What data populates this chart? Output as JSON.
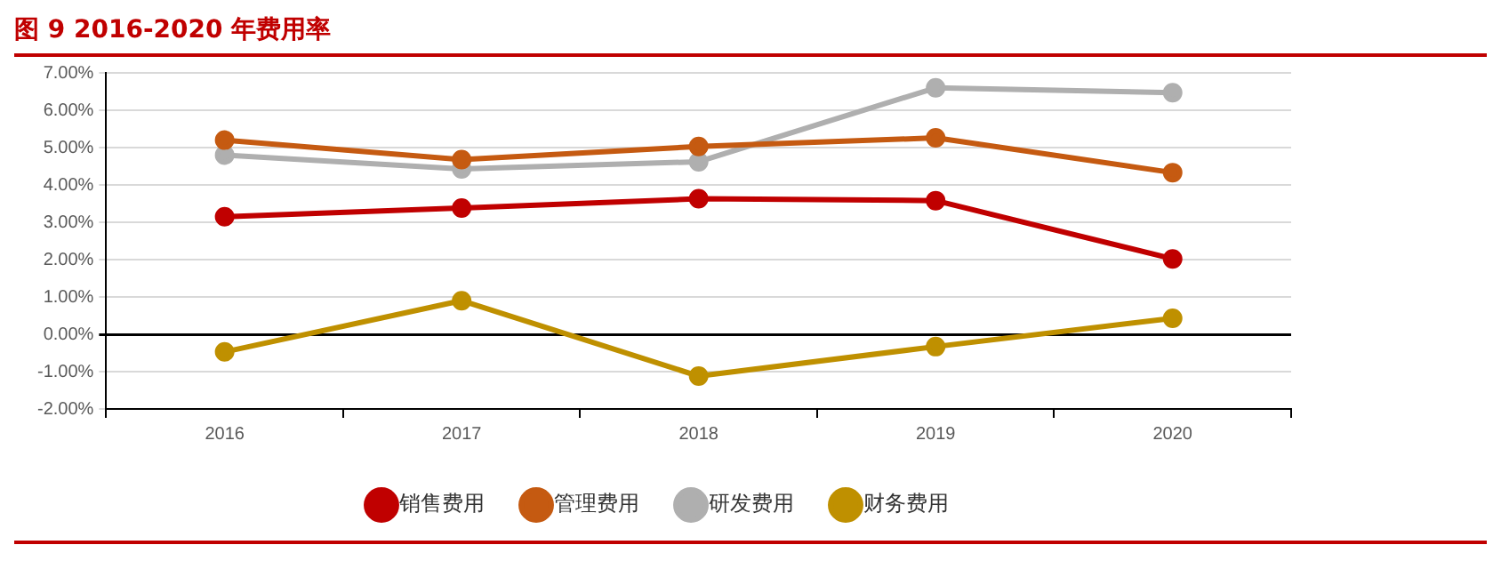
{
  "chart_data": {
    "type": "line",
    "title": "图 9 2016-2020 年费用率",
    "categories": [
      "2016",
      "2017",
      "2018",
      "2019",
      "2020"
    ],
    "series": [
      {
        "name": "销售费用",
        "color": "#c00000",
        "values": [
          3.15,
          3.38,
          3.63,
          3.58,
          2.02
        ]
      },
      {
        "name": "管理费用",
        "color": "#c55a11",
        "values": [
          5.2,
          4.68,
          5.03,
          5.26,
          4.33
        ]
      },
      {
        "name": "研发费用",
        "color": "#afafaf",
        "values": [
          4.8,
          4.43,
          4.62,
          6.6,
          6.47
        ]
      },
      {
        "name": "财务费用",
        "color": "#bf9000",
        "values": [
          -0.47,
          0.9,
          -1.12,
          -0.33,
          0.43
        ]
      }
    ],
    "ylim": [
      -2,
      7
    ],
    "yticks": [
      {
        "value": -2,
        "label": "-2.00%"
      },
      {
        "value": -1,
        "label": "-1.00%"
      },
      {
        "value": 0,
        "label": "0.00%"
      },
      {
        "value": 1,
        "label": "1.00%"
      },
      {
        "value": 2,
        "label": "2.00%"
      },
      {
        "value": 3,
        "label": "3.00%"
      },
      {
        "value": 4,
        "label": "4.00%"
      },
      {
        "value": 5,
        "label": "5.00%"
      },
      {
        "value": 6,
        "label": "6.00%"
      },
      {
        "value": 7,
        "label": "7.00%"
      }
    ],
    "grid": "y",
    "legend": "bottom",
    "marker": "circle",
    "line_style": "solid"
  }
}
